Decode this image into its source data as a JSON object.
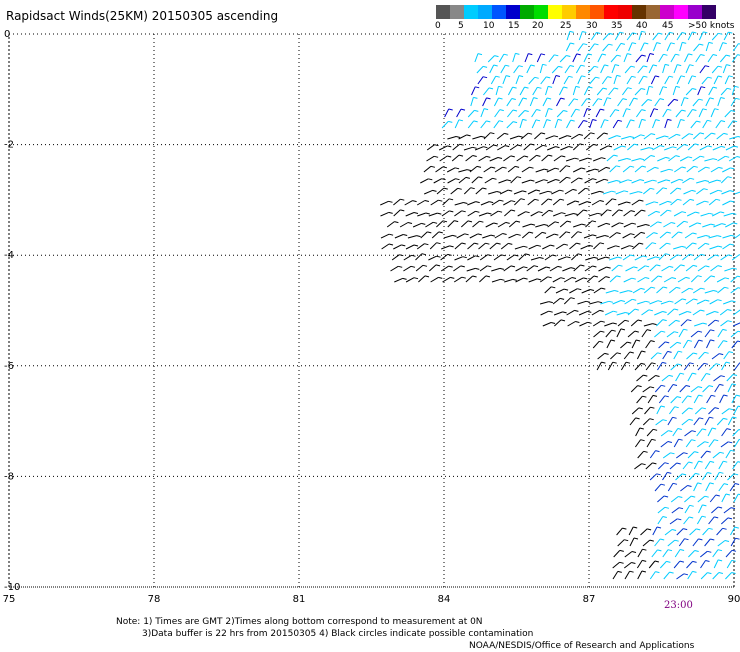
{
  "title": "Rapidsact Winds(25KM) 20150305 ascending",
  "legend": {
    "unit": "knots",
    "swatches": [
      "#555555",
      "#888888",
      "#00ccff",
      "#00aaff",
      "#0055ff",
      "#0000cc",
      "#00aa00",
      "#00dd00",
      "#ffff00",
      "#ffcc00",
      "#ff8800",
      "#ff5500",
      "#ff0000",
      "#ee0000",
      "#663300",
      "#996633",
      "#cc00cc",
      "#ff00ff",
      "#9900cc",
      "#330066"
    ],
    "labels": [
      "0",
      "5",
      "10",
      "15",
      "20",
      "25",
      "30",
      "35",
      "40",
      "45",
      ">50 knots"
    ]
  },
  "map": {
    "lon_range": [
      75,
      90
    ],
    "lat_range": [
      -10,
      0
    ],
    "x_ticks": [
      "75",
      "78",
      "81",
      "84",
      "87",
      "90"
    ],
    "y_ticks": [
      "0",
      "-2",
      "-4",
      "-6",
      "-8",
      "-10"
    ],
    "grid": "dotted"
  },
  "time_label": "23:00",
  "notes": [
    "Note: 1) Times are GMT 2)Times along bottom correspond to measurement at 0N",
    "3)Data buffer is 22 hrs from 20150305 4) Black circles indicate possible contamination",
    "NOAA/NESDIS/Office of Research and Applications"
  ]
}
